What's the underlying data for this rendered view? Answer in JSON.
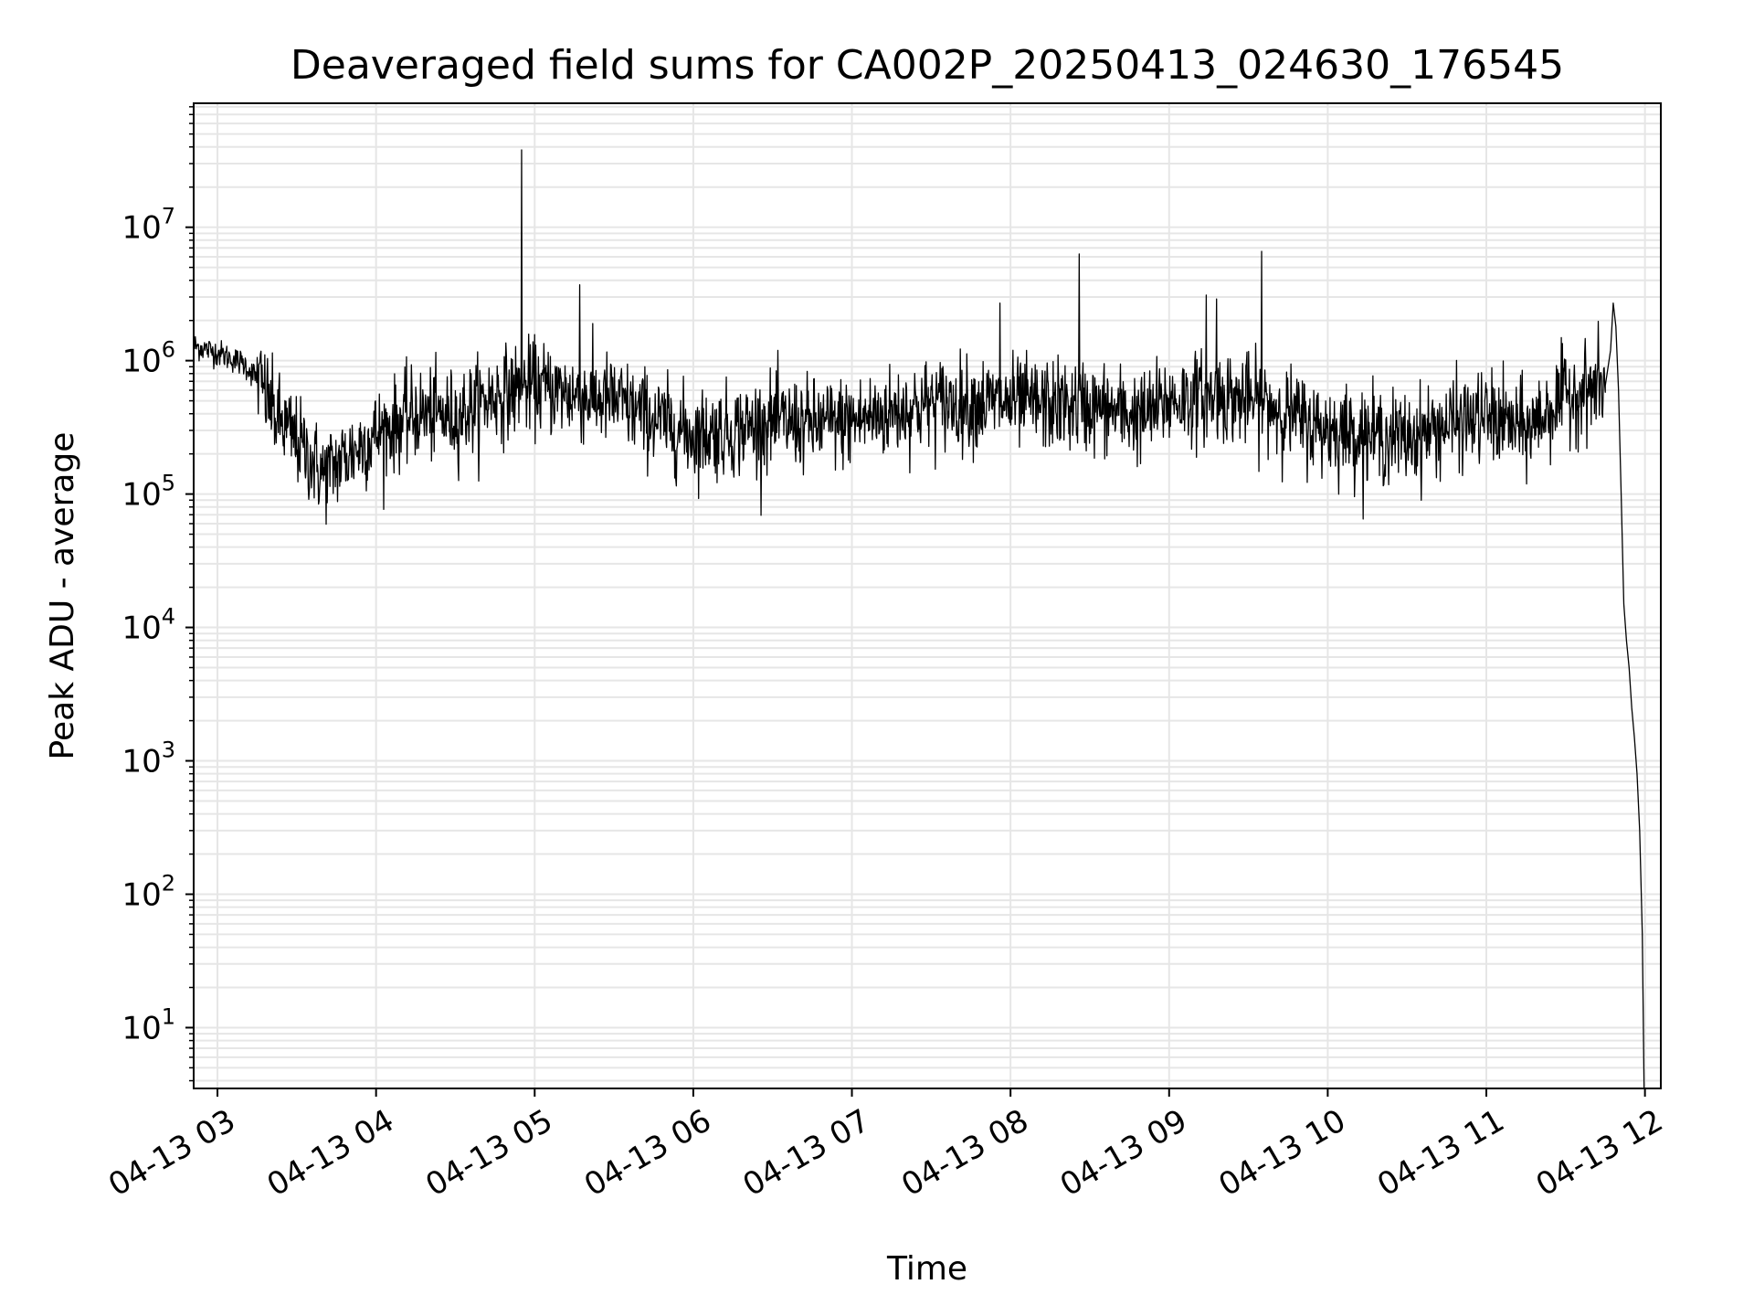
{
  "chart_data": {
    "type": "line",
    "title": "Deaveraged field sums for CA002P_20250413_024630_176545",
    "xlabel": "Time",
    "ylabel": "Peak ADU - average",
    "yscale": "log",
    "grid": true,
    "line_color": "#000000",
    "grid_color": "#e6e6e6",
    "xlim": [
      "2025-04-13 02:51",
      "2025-04-13 12:06"
    ],
    "ylim": [
      3.5,
      85000000
    ],
    "x_ticks": [
      {
        "value": "2025-04-13 03:00",
        "label": "04-13 03"
      },
      {
        "value": "2025-04-13 04:00",
        "label": "04-13 04"
      },
      {
        "value": "2025-04-13 05:00",
        "label": "04-13 05"
      },
      {
        "value": "2025-04-13 06:00",
        "label": "04-13 06"
      },
      {
        "value": "2025-04-13 07:00",
        "label": "04-13 07"
      },
      {
        "value": "2025-04-13 08:00",
        "label": "04-13 08"
      },
      {
        "value": "2025-04-13 09:00",
        "label": "04-13 09"
      },
      {
        "value": "2025-04-13 10:00",
        "label": "04-13 10"
      },
      {
        "value": "2025-04-13 11:00",
        "label": "04-13 11"
      },
      {
        "value": "2025-04-13 12:00",
        "label": "04-13 12"
      }
    ],
    "y_ticks": [
      {
        "value": 10,
        "base": "10",
        "exp": "1"
      },
      {
        "value": 100,
        "base": "10",
        "exp": "2"
      },
      {
        "value": 1000,
        "base": "10",
        "exp": "3"
      },
      {
        "value": 10000,
        "base": "10",
        "exp": "4"
      },
      {
        "value": 100000,
        "base": "10",
        "exp": "5"
      },
      {
        "value": 1000000,
        "base": "10",
        "exp": "6"
      },
      {
        "value": 10000000,
        "base": "10",
        "exp": "7"
      }
    ],
    "series": [
      {
        "noisy": true,
        "points": [
          {
            "x": "2025-04-13 02:51",
            "y": 1300000
          },
          {
            "x": "2025-04-13 03:00",
            "y": 1150000
          },
          {
            "x": "2025-04-13 03:10",
            "y": 950000
          },
          {
            "x": "2025-04-13 03:16",
            "y": 700000
          },
          {
            "x": "2025-04-13 03:22",
            "y": 380000
          },
          {
            "x": "2025-04-13 03:30",
            "y": 250000
          },
          {
            "x": "2025-04-13 03:40",
            "y": 140000
          },
          {
            "x": "2025-04-13 03:50",
            "y": 200000
          },
          {
            "x": "2025-04-13 04:00",
            "y": 280000
          },
          {
            "x": "2025-04-13 04:15",
            "y": 400000
          },
          {
            "x": "2025-04-13 04:30",
            "y": 380000
          },
          {
            "x": "2025-04-13 04:45",
            "y": 550000
          },
          {
            "x": "2025-04-13 05:00",
            "y": 650000
          },
          {
            "x": "2025-04-13 05:15",
            "y": 550000
          },
          {
            "x": "2025-04-13 05:30",
            "y": 500000
          },
          {
            "x": "2025-04-13 05:50",
            "y": 330000
          },
          {
            "x": "2025-04-13 06:00",
            "y": 280000
          },
          {
            "x": "2025-04-13 06:15",
            "y": 300000
          },
          {
            "x": "2025-04-13 06:30",
            "y": 350000
          },
          {
            "x": "2025-04-13 06:45",
            "y": 330000
          },
          {
            "x": "2025-04-13 07:00",
            "y": 350000
          },
          {
            "x": "2025-04-13 07:30",
            "y": 480000
          },
          {
            "x": "2025-04-13 08:00",
            "y": 480000
          },
          {
            "x": "2025-04-13 08:30",
            "y": 450000
          },
          {
            "x": "2025-04-13 08:50",
            "y": 380000
          },
          {
            "x": "2025-04-13 09:00",
            "y": 500000
          },
          {
            "x": "2025-04-13 09:20",
            "y": 550000
          },
          {
            "x": "2025-04-13 09:40",
            "y": 450000
          },
          {
            "x": "2025-04-13 09:55",
            "y": 320000
          },
          {
            "x": "2025-04-13 10:15",
            "y": 280000
          },
          {
            "x": "2025-04-13 10:30",
            "y": 260000
          },
          {
            "x": "2025-04-13 10:45",
            "y": 330000
          },
          {
            "x": "2025-04-13 11:00",
            "y": 380000
          },
          {
            "x": "2025-04-13 11:15",
            "y": 300000
          },
          {
            "x": "2025-04-13 11:30",
            "y": 550000
          },
          {
            "x": "2025-04-13 11:45",
            "y": 650000
          }
        ]
      },
      {
        "noisy": false,
        "points": [
          {
            "x": "2025-04-13 11:45",
            "y": 650000
          },
          {
            "x": "2025-04-13 11:47",
            "y": 1200000
          },
          {
            "x": "2025-04-13 11:48",
            "y": 2700000
          },
          {
            "x": "2025-04-13 11:49",
            "y": 1800000
          },
          {
            "x": "2025-04-13 11:50",
            "y": 600000
          },
          {
            "x": "2025-04-13 11:51",
            "y": 100000
          },
          {
            "x": "2025-04-13 11:52",
            "y": 15000
          },
          {
            "x": "2025-04-13 11:53",
            "y": 8000
          },
          {
            "x": "2025-04-13 11:54",
            "y": 5000
          },
          {
            "x": "2025-04-13 11:55",
            "y": 2500
          },
          {
            "x": "2025-04-13 11:56",
            "y": 1500
          },
          {
            "x": "2025-04-13 11:57",
            "y": 800
          },
          {
            "x": "2025-04-13 11:58",
            "y": 300
          },
          {
            "x": "2025-04-13 11:59",
            "y": 50
          },
          {
            "x": "2025-04-13 11:59:40",
            "y": 3.5
          }
        ]
      }
    ],
    "spikes": [
      {
        "x": "2025-04-13 04:55",
        "y": 38000000
      },
      {
        "x": "2025-04-13 05:17",
        "y": 3700000
      },
      {
        "x": "2025-04-13 07:56",
        "y": 2700000
      },
      {
        "x": "2025-04-13 08:26",
        "y": 6300000
      },
      {
        "x": "2025-04-13 09:14",
        "y": 3100000
      },
      {
        "x": "2025-04-13 09:18",
        "y": 2900000
      },
      {
        "x": "2025-04-13 09:35",
        "y": 6600000
      }
    ]
  }
}
